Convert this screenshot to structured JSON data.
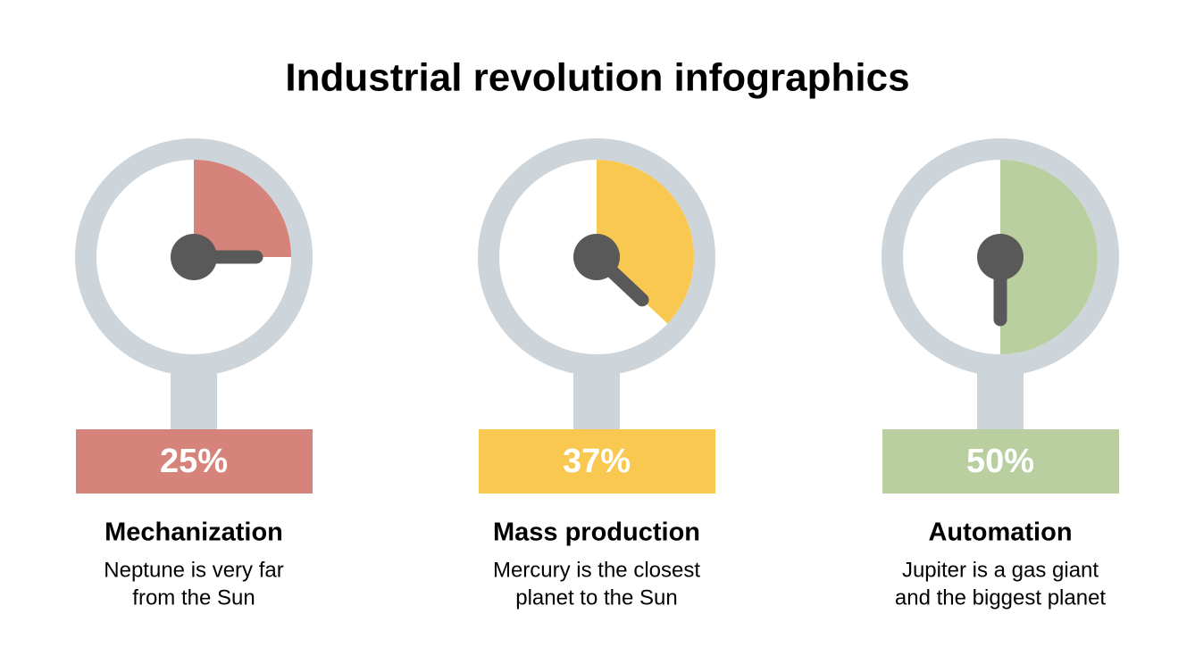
{
  "chart_data": {
    "type": "gauge",
    "title": "Industrial revolution infographics",
    "categories": [
      "Mechanization",
      "Mass production",
      "Automation"
    ],
    "values": [
      25,
      37,
      50
    ],
    "value_labels": [
      "25%",
      "37%",
      "50%"
    ],
    "ylim": [
      0,
      100
    ],
    "colors": [
      "#d6837b",
      "#f8c851",
      "#b9cfa0"
    ],
    "descriptions": [
      [
        "Neptune is very far",
        "from the Sun"
      ],
      [
        "Mercury is the closest",
        "planet to the Sun"
      ],
      [
        "Jupiter is a gas giant",
        "and the biggest planet"
      ]
    ]
  }
}
